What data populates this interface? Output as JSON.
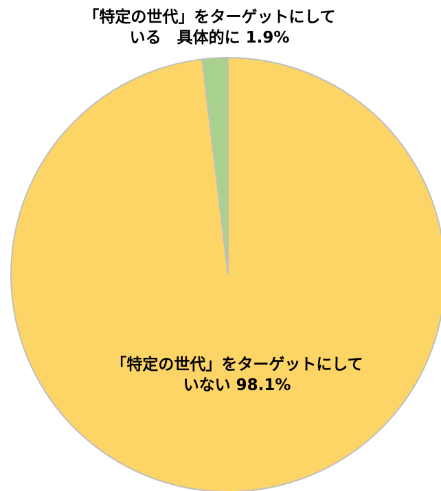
{
  "chart_data": {
    "type": "pie",
    "title": "",
    "legend": "none",
    "start_angle_deg": 0,
    "direction": "clockwise",
    "slices": [
      {
        "label_line1": "「特定の世代」をターゲットにして",
        "label_line2": "いない 98.1%",
        "value": 98.1,
        "color": "#FDD567"
      },
      {
        "label_line1": "「特定の世代」をターゲットにして",
        "label_line2": "いる　具体的に 1.9%",
        "value": 1.9,
        "color": "#A9D18E"
      }
    ],
    "border_color": "#BFBFBF"
  }
}
